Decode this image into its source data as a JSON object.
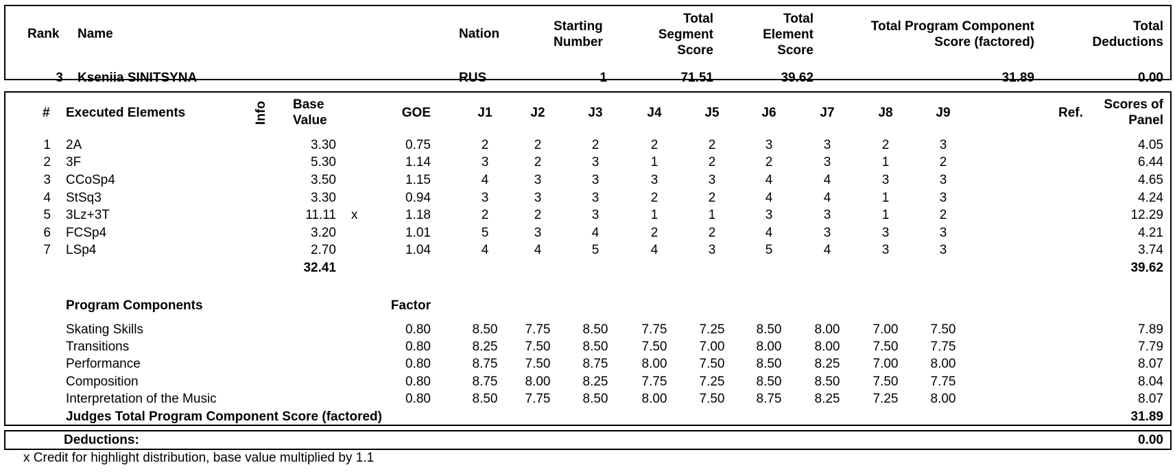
{
  "header": {
    "labels": {
      "rank": "Rank",
      "name": "Name",
      "nation": "Nation",
      "starting_number_1": "Starting",
      "starting_number_2": "Number",
      "tss_1": "Total",
      "tss_2": "Segment",
      "tss_3": "Score",
      "tes_1": "Total",
      "tes_2": "Element",
      "tes_3": "Score",
      "pcs_1": "Total Program Component",
      "pcs_2": "Score (factored)",
      "ded_1": "Total",
      "ded_2": "Deductions"
    },
    "skater": {
      "rank": "3",
      "name": "Kseniia SINITSYNA",
      "nation": "RUS",
      "starting_number": "1",
      "total_segment_score": "71.51",
      "total_element_score": "39.62",
      "total_pcs": "31.89",
      "total_deductions": "0.00"
    }
  },
  "elements_table": {
    "labels": {
      "num": "#",
      "executed": "Executed Elements",
      "info": "Info",
      "base_1": "Base",
      "base_2": "Value",
      "goe": "GOE",
      "judges": [
        "J1",
        "J2",
        "J3",
        "J4",
        "J5",
        "J6",
        "J7",
        "J8",
        "J9"
      ],
      "ref": "Ref.",
      "panel_1": "Scores of",
      "panel_2": "Panel"
    },
    "rows": [
      {
        "num": "1",
        "element": "2A",
        "info": "",
        "base": "3.30",
        "goe": "0.75",
        "j": [
          "2",
          "2",
          "2",
          "2",
          "2",
          "3",
          "3",
          "2",
          "3"
        ],
        "panel": "4.05"
      },
      {
        "num": "2",
        "element": "3F",
        "info": "",
        "base": "5.30",
        "goe": "1.14",
        "j": [
          "3",
          "2",
          "3",
          "1",
          "2",
          "2",
          "3",
          "1",
          "2"
        ],
        "panel": "6.44"
      },
      {
        "num": "3",
        "element": "CCoSp4",
        "info": "",
        "base": "3.50",
        "goe": "1.15",
        "j": [
          "4",
          "3",
          "3",
          "3",
          "3",
          "4",
          "4",
          "3",
          "3"
        ],
        "panel": "4.65"
      },
      {
        "num": "4",
        "element": "StSq3",
        "info": "",
        "base": "3.30",
        "goe": "0.94",
        "j": [
          "3",
          "3",
          "3",
          "2",
          "2",
          "4",
          "4",
          "1",
          "3"
        ],
        "panel": "4.24"
      },
      {
        "num": "5",
        "element": "3Lz+3T",
        "info": "x",
        "base": "11.11",
        "goe": "1.18",
        "j": [
          "2",
          "2",
          "3",
          "1",
          "1",
          "3",
          "3",
          "1",
          "2"
        ],
        "panel": "12.29"
      },
      {
        "num": "6",
        "element": "FCSp4",
        "info": "",
        "base": "3.20",
        "goe": "1.01",
        "j": [
          "5",
          "3",
          "4",
          "2",
          "2",
          "4",
          "3",
          "3",
          "3"
        ],
        "panel": "4.21"
      },
      {
        "num": "7",
        "element": "LSp4",
        "info": "",
        "base": "2.70",
        "goe": "1.04",
        "j": [
          "4",
          "4",
          "5",
          "4",
          "3",
          "5",
          "4",
          "3",
          "3"
        ],
        "panel": "3.74"
      }
    ],
    "base_total": "32.41",
    "panel_total": "39.62"
  },
  "components": {
    "title": "Program Components",
    "factor_label": "Factor",
    "rows": [
      {
        "name": "Skating Skills",
        "factor": "0.80",
        "j": [
          "8.50",
          "7.75",
          "8.50",
          "7.75",
          "7.25",
          "8.50",
          "8.00",
          "7.00",
          "7.50"
        ],
        "panel": "7.89"
      },
      {
        "name": "Transitions",
        "factor": "0.80",
        "j": [
          "8.25",
          "7.50",
          "8.50",
          "7.50",
          "7.00",
          "8.00",
          "8.00",
          "7.50",
          "7.75"
        ],
        "panel": "7.79"
      },
      {
        "name": "Performance",
        "factor": "0.80",
        "j": [
          "8.75",
          "7.50",
          "8.75",
          "8.00",
          "7.50",
          "8.50",
          "8.25",
          "7.00",
          "8.00"
        ],
        "panel": "8.07"
      },
      {
        "name": "Composition",
        "factor": "0.80",
        "j": [
          "8.75",
          "8.00",
          "8.25",
          "7.75",
          "7.25",
          "8.50",
          "8.50",
          "7.50",
          "7.75"
        ],
        "panel": "8.04"
      },
      {
        "name": "Interpretation of the Music",
        "factor": "0.80",
        "j": [
          "8.50",
          "7.75",
          "8.50",
          "8.00",
          "7.50",
          "8.75",
          "8.25",
          "7.25",
          "8.00"
        ],
        "panel": "8.07"
      }
    ],
    "total_label": "Judges Total Program Component Score (factored)",
    "total": "31.89"
  },
  "deductions": {
    "label": "Deductions:",
    "value": "0.00"
  },
  "footnote": "x Credit for highlight distribution, base value multiplied by 1.1"
}
